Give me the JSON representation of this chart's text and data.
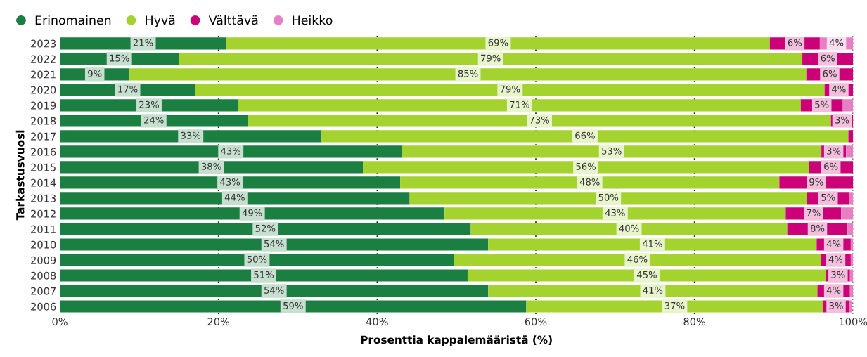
{
  "chart_data": {
    "type": "bar",
    "orientation": "horizontal",
    "stacked": true,
    "ylabel": "Tarkastusvuosi",
    "xlabel": "Prosenttia kappalemääristä (%)",
    "categories": [
      "2023",
      "2022",
      "2021",
      "2020",
      "2019",
      "2018",
      "2017",
      "2016",
      "2015",
      "2014",
      "2013",
      "2012",
      "2011",
      "2010",
      "2009",
      "2008",
      "2007",
      "2006"
    ],
    "series": [
      {
        "name": "Erinomainen",
        "color": "#1a7f40",
        "values": [
          21,
          15,
          8.8,
          17.1,
          22.5,
          23.7,
          33,
          43.1,
          38.2,
          42.9,
          44.1,
          48.5,
          51.8,
          54,
          49.7,
          51.4,
          54,
          58.8
        ],
        "value_labels": [
          "21%",
          "15%",
          "9%",
          "17%",
          "23%",
          "24%",
          "33%",
          "43%",
          "38%",
          "43%",
          "44%",
          "49%",
          "52%",
          "54%",
          "50%",
          "51%",
          "54%",
          "59%"
        ]
      },
      {
        "name": "Hyvä",
        "color": "#a4d22e",
        "values": [
          68.5,
          78.6,
          85.3,
          79.3,
          70.9,
          73.5,
          66.4,
          52.9,
          56.2,
          47.8,
          50.1,
          43,
          39.9,
          41.4,
          46.2,
          45.2,
          41.5,
          37.4
        ],
        "value_labels": [
          "69%",
          "79%",
          "85%",
          "79%",
          "71%",
          "73%",
          "66%",
          "53%",
          "56%",
          "48%",
          "50%",
          "43%",
          "40%",
          "41%",
          "46%",
          "45%",
          "41%",
          "37%"
        ]
      },
      {
        "name": "Välttävä",
        "color": "#cc0077",
        "values": [
          6.3,
          6.4,
          5.9,
          3.6,
          5.3,
          2.8,
          0.6,
          3.1,
          5.6,
          9.3,
          5.3,
          7,
          7.6,
          4.3,
          3.8,
          3,
          4.1,
          3.3
        ],
        "value_labels": [
          "6%",
          "6%",
          "6%",
          "4%",
          "5%",
          "3%",
          null,
          "3%",
          "6%",
          "9%",
          "5%",
          "7%",
          "8%",
          "4%",
          "4%",
          "3%",
          "4%",
          "3%"
        ]
      },
      {
        "name": "Heikko",
        "color": "#e87fc4",
        "values": [
          4.2,
          0,
          0,
          0,
          1.3,
          0,
          0,
          0.9,
          0,
          0,
          0.5,
          1.5,
          0.7,
          0.3,
          0.3,
          0.4,
          0.4,
          0.3
        ],
        "value_labels": [
          "4%",
          null,
          null,
          null,
          null,
          null,
          null,
          null,
          null,
          null,
          null,
          null,
          null,
          null,
          null,
          null,
          null,
          null
        ]
      }
    ],
    "xlim": [
      0,
      100
    ],
    "xticks": [
      {
        "value": 0,
        "label": "0%"
      },
      {
        "value": 20,
        "label": "20%"
      },
      {
        "value": 40,
        "label": "40%"
      },
      {
        "value": 60,
        "label": "60%"
      },
      {
        "value": 80,
        "label": "80%"
      },
      {
        "value": 100,
        "label": "100%"
      }
    ],
    "grid": "x",
    "legend": "top left",
    "marker": "circle"
  }
}
